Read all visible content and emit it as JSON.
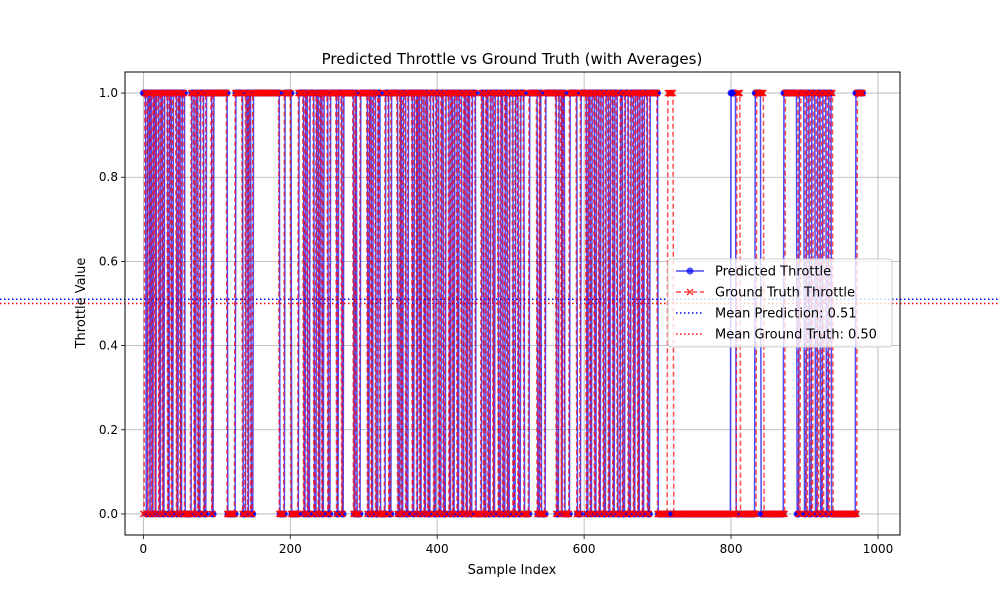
{
  "chart_data": {
    "type": "line",
    "title": "Predicted Throttle vs Ground Truth (with Averages)",
    "xlabel": "Sample Index",
    "ylabel": "Throttle Value",
    "xlim": [
      -25,
      1030
    ],
    "ylim": [
      -0.05,
      1.05
    ],
    "xticks": [
      0,
      200,
      400,
      600,
      800,
      1000
    ],
    "yticks": [
      0.0,
      0.2,
      0.4,
      0.6,
      0.8,
      1.0
    ],
    "xtick_labels": [
      "0",
      "200",
      "400",
      "600",
      "800",
      "1000"
    ],
    "ytick_labels": [
      "0.0",
      "0.2",
      "0.4",
      "0.6",
      "0.8",
      "1.0"
    ],
    "grid": true,
    "legend_position": "center-right",
    "n_samples": 980,
    "series": [
      {
        "name": "Predicted Throttle",
        "color": "#0000ff",
        "style": "solid",
        "marker": "circle",
        "segments_high": [
          [
            0,
            3
          ],
          [
            6,
            8
          ],
          [
            10,
            11
          ],
          [
            14,
            16
          ],
          [
            18,
            21
          ],
          [
            24,
            26
          ],
          [
            29,
            33
          ],
          [
            36,
            38
          ],
          [
            41,
            45
          ],
          [
            48,
            50
          ],
          [
            53,
            56
          ],
          [
            66,
            69
          ],
          [
            72,
            74
          ],
          [
            78,
            82
          ],
          [
            86,
            93
          ],
          [
            96,
            114
          ],
          [
            126,
            135
          ],
          [
            140,
            142
          ],
          [
            144,
            146
          ],
          [
            150,
            185
          ],
          [
            193,
            201
          ],
          [
            212,
            218
          ],
          [
            221,
            223
          ],
          [
            227,
            232
          ],
          [
            236,
            238
          ],
          [
            241,
            243
          ],
          [
            246,
            251
          ],
          [
            255,
            263
          ],
          [
            266,
            270
          ],
          [
            273,
            286
          ],
          [
            289,
            290
          ],
          [
            296,
            305
          ],
          [
            308,
            310
          ],
          [
            313,
            316
          ],
          [
            320,
            322
          ],
          [
            330,
            334
          ],
          [
            338,
            346
          ],
          [
            350,
            351
          ],
          [
            354,
            357
          ],
          [
            361,
            366
          ],
          [
            369,
            372
          ],
          [
            374,
            376
          ],
          [
            379,
            382
          ],
          [
            385,
            387
          ],
          [
            391,
            395
          ],
          [
            399,
            402
          ],
          [
            406,
            408
          ],
          [
            412,
            416
          ],
          [
            419,
            421
          ],
          [
            424,
            427
          ],
          [
            430,
            433
          ],
          [
            437,
            439
          ],
          [
            442,
            444
          ],
          [
            448,
            452
          ],
          [
            461,
            463
          ],
          [
            467,
            469
          ],
          [
            473,
            476
          ],
          [
            479,
            483
          ],
          [
            487,
            489
          ],
          [
            493,
            495
          ],
          [
            499,
            503
          ],
          [
            507,
            510
          ],
          [
            514,
            518
          ],
          [
            526,
            536
          ],
          [
            540,
            541
          ],
          [
            548,
            562
          ],
          [
            566,
            569
          ],
          [
            571,
            573
          ],
          [
            581,
            590
          ],
          [
            596,
            603
          ],
          [
            606,
            608
          ],
          [
            611,
            614
          ],
          [
            617,
            620
          ],
          [
            623,
            626
          ],
          [
            630,
            633
          ],
          [
            636,
            639
          ],
          [
            642,
            645
          ],
          [
            650,
            652
          ],
          [
            656,
            660
          ],
          [
            664,
            667
          ],
          [
            670,
            673
          ],
          [
            676,
            679
          ],
          [
            682,
            686
          ],
          [
            690,
            700
          ],
          [
            800,
            806
          ],
          [
            833,
            840
          ],
          [
            872,
            889
          ],
          [
            893,
            899
          ],
          [
            903,
            906
          ],
          [
            910,
            914
          ],
          [
            918,
            921
          ],
          [
            925,
            929
          ],
          [
            933,
            936
          ],
          [
            970,
            980
          ]
        ],
        "mean": 0.51,
        "mean_label": "Mean Prediction: 0.51",
        "mean_color": "#0000ff"
      },
      {
        "name": "Ground Truth Throttle",
        "color": "#ff0000",
        "style": "dashed",
        "marker": "x",
        "segments_high": [
          [
            2,
            5
          ],
          [
            8,
            10
          ],
          [
            13,
            15
          ],
          [
            17,
            20
          ],
          [
            23,
            25
          ],
          [
            28,
            32
          ],
          [
            35,
            37
          ],
          [
            40,
            44
          ],
          [
            47,
            49
          ],
          [
            52,
            55
          ],
          [
            65,
            68
          ],
          [
            71,
            73
          ],
          [
            77,
            81
          ],
          [
            85,
            92
          ],
          [
            95,
            113
          ],
          [
            125,
            134
          ],
          [
            139,
            141
          ],
          [
            143,
            145
          ],
          [
            149,
            184
          ],
          [
            192,
            200
          ],
          [
            211,
            217
          ],
          [
            220,
            222
          ],
          [
            226,
            231
          ],
          [
            235,
            237
          ],
          [
            240,
            242
          ],
          [
            245,
            250
          ],
          [
            254,
            262
          ],
          [
            265,
            269
          ],
          [
            272,
            285
          ],
          [
            288,
            289
          ],
          [
            295,
            304
          ],
          [
            307,
            309
          ],
          [
            312,
            315
          ],
          [
            319,
            321
          ],
          [
            329,
            333
          ],
          [
            337,
            345
          ],
          [
            349,
            350
          ],
          [
            353,
            356
          ],
          [
            360,
            365
          ],
          [
            368,
            371
          ],
          [
            373,
            375
          ],
          [
            378,
            381
          ],
          [
            384,
            386
          ],
          [
            390,
            394
          ],
          [
            398,
            401
          ],
          [
            405,
            407
          ],
          [
            411,
            415
          ],
          [
            418,
            420
          ],
          [
            423,
            426
          ],
          [
            429,
            432
          ],
          [
            436,
            438
          ],
          [
            441,
            443
          ],
          [
            447,
            451
          ],
          [
            460,
            462
          ],
          [
            466,
            468
          ],
          [
            472,
            475
          ],
          [
            478,
            482
          ],
          [
            486,
            488
          ],
          [
            492,
            494
          ],
          [
            498,
            502
          ],
          [
            506,
            509
          ],
          [
            513,
            517
          ],
          [
            525,
            535
          ],
          [
            539,
            540
          ],
          [
            547,
            561
          ],
          [
            565,
            568
          ],
          [
            570,
            572
          ],
          [
            580,
            589
          ],
          [
            595,
            602
          ],
          [
            605,
            607
          ],
          [
            610,
            613
          ],
          [
            616,
            619
          ],
          [
            622,
            625
          ],
          [
            629,
            632
          ],
          [
            635,
            638
          ],
          [
            641,
            644
          ],
          [
            649,
            651
          ],
          [
            655,
            659
          ],
          [
            663,
            666
          ],
          [
            669,
            672
          ],
          [
            675,
            678
          ],
          [
            681,
            685
          ],
          [
            689,
            699
          ],
          [
            714,
            721
          ],
          [
            808,
            812
          ],
          [
            835,
            844
          ],
          [
            874,
            891
          ],
          [
            895,
            901
          ],
          [
            905,
            908
          ],
          [
            912,
            916
          ],
          [
            920,
            923
          ],
          [
            927,
            931
          ],
          [
            935,
            938
          ],
          [
            972,
            982
          ]
        ],
        "mean": 0.5,
        "mean_label": "Mean Ground Truth: 0.50",
        "mean_color": "#ff0000"
      }
    ]
  }
}
